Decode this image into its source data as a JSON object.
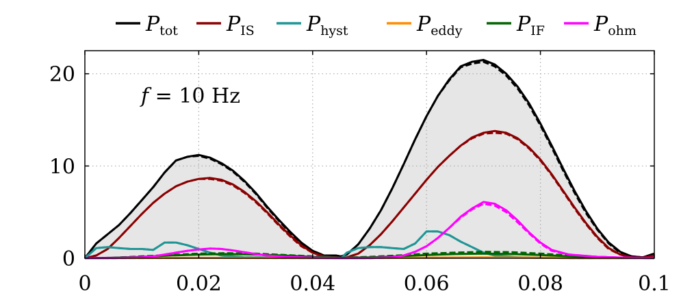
{
  "chart_data": {
    "type": "line",
    "xlim": [
      0,
      0.1
    ],
    "ylim": [
      0,
      22.5
    ],
    "x_ticks": [
      {
        "value": 0,
        "label": "0"
      },
      {
        "value": 0.02,
        "label": "0.02"
      },
      {
        "value": 0.04,
        "label": "0.04"
      },
      {
        "value": 0.06,
        "label": "0.06"
      },
      {
        "value": 0.08,
        "label": "0.08"
      },
      {
        "value": 0.1,
        "label": "0.1"
      }
    ],
    "y_ticks": [
      {
        "value": 0,
        "label": "0"
      },
      {
        "value": 10,
        "label": "10"
      },
      {
        "value": 20,
        "label": "20"
      }
    ],
    "grid": true,
    "legend_position": "top",
    "annotation": {
      "var": "f",
      "text": " = 10 Hz"
    },
    "shaded_series": "tot",
    "series": [
      {
        "key": "tot",
        "symbol": "P",
        "subscript": "tot",
        "color": "#000000",
        "x": [
          0,
          0.002,
          0.004,
          0.006,
          0.008,
          0.01,
          0.012,
          0.014,
          0.016,
          0.018,
          0.02,
          0.022,
          0.024,
          0.026,
          0.028,
          0.03,
          0.032,
          0.034,
          0.036,
          0.038,
          0.04,
          0.042,
          0.044,
          0.045,
          0.046,
          0.048,
          0.05,
          0.052,
          0.054,
          0.056,
          0.058,
          0.06,
          0.062,
          0.064,
          0.066,
          0.068,
          0.07,
          0.072,
          0.074,
          0.076,
          0.078,
          0.08,
          0.082,
          0.084,
          0.086,
          0.088,
          0.09,
          0.092,
          0.094,
          0.096,
          0.098,
          0.1
        ],
        "y": [
          0,
          1.6,
          2.6,
          3.6,
          4.9,
          6.3,
          7.7,
          9.3,
          10.6,
          11.0,
          11.2,
          10.9,
          10.3,
          9.5,
          8.4,
          7.1,
          5.6,
          4.2,
          2.9,
          1.7,
          0.8,
          0.3,
          0.3,
          0.2,
          0.4,
          1.5,
          3.2,
          5.2,
          7.6,
          10.2,
          12.9,
          15.4,
          17.6,
          19.4,
          20.8,
          21.3,
          21.5,
          21.0,
          20.0,
          18.6,
          16.8,
          14.6,
          12.2,
          9.7,
          7.3,
          5.1,
          3.2,
          1.7,
          0.7,
          0.2,
          0.1,
          0.5
        ],
        "dashed_y": [
          0,
          1.6,
          2.6,
          3.6,
          4.9,
          6.3,
          7.7,
          9.3,
          10.6,
          11.0,
          11.1,
          10.8,
          10.2,
          9.4,
          8.3,
          7.0,
          5.5,
          4.1,
          2.8,
          1.6,
          0.8,
          0.3,
          0.3,
          0.2,
          0.4,
          1.5,
          3.2,
          5.2,
          7.6,
          10.2,
          12.9,
          15.4,
          17.6,
          19.3,
          20.7,
          21.1,
          21.3,
          20.8,
          19.8,
          18.4,
          16.6,
          14.4,
          12.0,
          9.5,
          7.1,
          4.9,
          3.1,
          1.6,
          0.6,
          0.2,
          0.1,
          0.5
        ]
      },
      {
        "key": "IS",
        "symbol": "P",
        "subscript": "IS",
        "color": "#8b0000",
        "x": [
          0,
          0.002,
          0.004,
          0.006,
          0.008,
          0.01,
          0.012,
          0.014,
          0.016,
          0.018,
          0.02,
          0.022,
          0.024,
          0.026,
          0.028,
          0.03,
          0.032,
          0.034,
          0.036,
          0.038,
          0.04,
          0.042,
          0.044,
          0.045,
          0.046,
          0.048,
          0.05,
          0.052,
          0.054,
          0.056,
          0.058,
          0.06,
          0.062,
          0.064,
          0.066,
          0.068,
          0.07,
          0.072,
          0.074,
          0.076,
          0.078,
          0.08,
          0.082,
          0.084,
          0.086,
          0.088,
          0.09,
          0.092,
          0.094,
          0.096,
          0.098,
          0.1
        ],
        "y": [
          0,
          0.3,
          1.0,
          2.2,
          3.5,
          4.8,
          6.0,
          7.0,
          7.8,
          8.3,
          8.6,
          8.7,
          8.5,
          8.0,
          7.2,
          6.2,
          5.0,
          3.7,
          2.5,
          1.4,
          0.6,
          0.2,
          0.1,
          0.05,
          0.1,
          0.5,
          1.4,
          2.6,
          4.0,
          5.5,
          7.0,
          8.5,
          9.9,
          11.1,
          12.2,
          13.1,
          13.6,
          13.8,
          13.6,
          13.0,
          12.0,
          10.7,
          9.1,
          7.3,
          5.5,
          3.8,
          2.3,
          1.1,
          0.4,
          0.1,
          0.05,
          0.3
        ],
        "dashed_y": [
          0,
          0.3,
          1.0,
          2.2,
          3.5,
          4.8,
          6.0,
          7.0,
          7.8,
          8.3,
          8.6,
          8.6,
          8.4,
          7.9,
          7.1,
          6.1,
          4.9,
          3.6,
          2.4,
          1.3,
          0.6,
          0.2,
          0.1,
          0.05,
          0.1,
          0.5,
          1.4,
          2.6,
          4.0,
          5.5,
          7.0,
          8.5,
          9.9,
          11.1,
          12.2,
          13.0,
          13.5,
          13.6,
          13.5,
          12.9,
          11.9,
          10.6,
          9.0,
          7.2,
          5.4,
          3.7,
          2.2,
          1.0,
          0.4,
          0.1,
          0.05,
          0.3
        ]
      },
      {
        "key": "hyst",
        "symbol": "P",
        "subscript": "hyst",
        "color": "#1f9595",
        "x": [
          0,
          0.002,
          0.004,
          0.006,
          0.008,
          0.01,
          0.012,
          0.014,
          0.016,
          0.018,
          0.02,
          0.022,
          0.024,
          0.026,
          0.028,
          0.03,
          0.035,
          0.04,
          0.044,
          0.045,
          0.046,
          0.048,
          0.05,
          0.052,
          0.054,
          0.056,
          0.058,
          0.06,
          0.062,
          0.064,
          0.066,
          0.068,
          0.07,
          0.072,
          0.074,
          0.076,
          0.08,
          0.085,
          0.09,
          0.095,
          0.1
        ],
        "y": [
          0,
          1.1,
          1.2,
          1.1,
          1.0,
          1.0,
          0.9,
          1.7,
          1.7,
          1.4,
          1.0,
          0.6,
          0.3,
          0.2,
          0.1,
          0.1,
          0.05,
          0.02,
          0.0,
          0.0,
          0.6,
          1.1,
          1.2,
          1.2,
          1.1,
          1.0,
          1.6,
          2.9,
          2.9,
          2.5,
          1.8,
          1.2,
          0.6,
          0.3,
          0.2,
          0.1,
          0.05,
          0.02,
          0.0,
          0.0,
          0.0
        ],
        "dashed_y": [
          0,
          1.1,
          1.2,
          1.1,
          1.0,
          1.0,
          0.9,
          1.7,
          1.7,
          1.4,
          1.0,
          0.6,
          0.3,
          0.2,
          0.1,
          0.1,
          0.05,
          0.02,
          0.0,
          0.0,
          0.6,
          1.1,
          1.2,
          1.2,
          1.1,
          1.0,
          1.6,
          2.9,
          2.9,
          2.5,
          1.8,
          1.2,
          0.6,
          0.3,
          0.2,
          0.1,
          0.05,
          0.02,
          0.0,
          0.0,
          0.0
        ]
      },
      {
        "key": "eddy",
        "symbol": "P",
        "subscript": "eddy",
        "color": "#ff8c00",
        "x": [
          0,
          0.01,
          0.02,
          0.03,
          0.04,
          0.045,
          0.05,
          0.06,
          0.07,
          0.08,
          0.09,
          0.1
        ],
        "y": [
          0,
          0.02,
          0.04,
          0.03,
          0.01,
          0.0,
          0.02,
          0.05,
          0.08,
          0.06,
          0.02,
          0.01
        ],
        "dashed_y": [
          0,
          0.02,
          0.04,
          0.03,
          0.01,
          0.0,
          0.02,
          0.05,
          0.08,
          0.06,
          0.02,
          0.01
        ]
      },
      {
        "key": "IF",
        "symbol": "P",
        "subscript": "IF",
        "color": "#006400",
        "x": [
          0,
          0.005,
          0.01,
          0.015,
          0.02,
          0.025,
          0.03,
          0.035,
          0.04,
          0.045,
          0.05,
          0.055,
          0.06,
          0.065,
          0.07,
          0.075,
          0.08,
          0.085,
          0.09,
          0.095,
          0.1
        ],
        "y": [
          0,
          0.05,
          0.15,
          0.3,
          0.4,
          0.45,
          0.4,
          0.3,
          0.15,
          0.05,
          0.1,
          0.2,
          0.35,
          0.45,
          0.5,
          0.45,
          0.35,
          0.2,
          0.1,
          0.05,
          0.02
        ],
        "dashed_y": [
          0,
          0.05,
          0.2,
          0.35,
          0.5,
          0.55,
          0.5,
          0.35,
          0.2,
          0.05,
          0.15,
          0.3,
          0.5,
          0.6,
          0.7,
          0.65,
          0.5,
          0.3,
          0.15,
          0.05,
          0.02
        ]
      },
      {
        "key": "ohm",
        "symbol": "P",
        "subscript": "ohm",
        "color": "#ff00ff",
        "x": [
          0,
          0.005,
          0.01,
          0.012,
          0.014,
          0.016,
          0.018,
          0.02,
          0.022,
          0.024,
          0.026,
          0.028,
          0.03,
          0.032,
          0.035,
          0.04,
          0.045,
          0.05,
          0.054,
          0.056,
          0.058,
          0.06,
          0.062,
          0.064,
          0.066,
          0.068,
          0.07,
          0.072,
          0.074,
          0.076,
          0.078,
          0.08,
          0.082,
          0.085,
          0.09,
          0.095,
          0.1
        ],
        "y": [
          0,
          0.02,
          0.1,
          0.2,
          0.4,
          0.6,
          0.8,
          0.95,
          1.05,
          1.0,
          0.85,
          0.65,
          0.45,
          0.3,
          0.15,
          0.05,
          0.0,
          0.02,
          0.1,
          0.3,
          0.7,
          1.3,
          2.2,
          3.3,
          4.5,
          5.4,
          6.1,
          5.9,
          5.2,
          4.1,
          2.8,
          1.7,
          0.9,
          0.4,
          0.15,
          0.05,
          0.02
        ],
        "dashed_y": [
          0,
          0.02,
          0.1,
          0.2,
          0.4,
          0.6,
          0.8,
          0.95,
          1.05,
          1.0,
          0.85,
          0.65,
          0.45,
          0.3,
          0.15,
          0.05,
          0.0,
          0.02,
          0.1,
          0.3,
          0.7,
          1.3,
          2.2,
          3.3,
          4.4,
          5.3,
          5.9,
          5.7,
          5.0,
          3.9,
          2.7,
          1.6,
          0.8,
          0.4,
          0.15,
          0.05,
          0.02
        ]
      }
    ]
  }
}
